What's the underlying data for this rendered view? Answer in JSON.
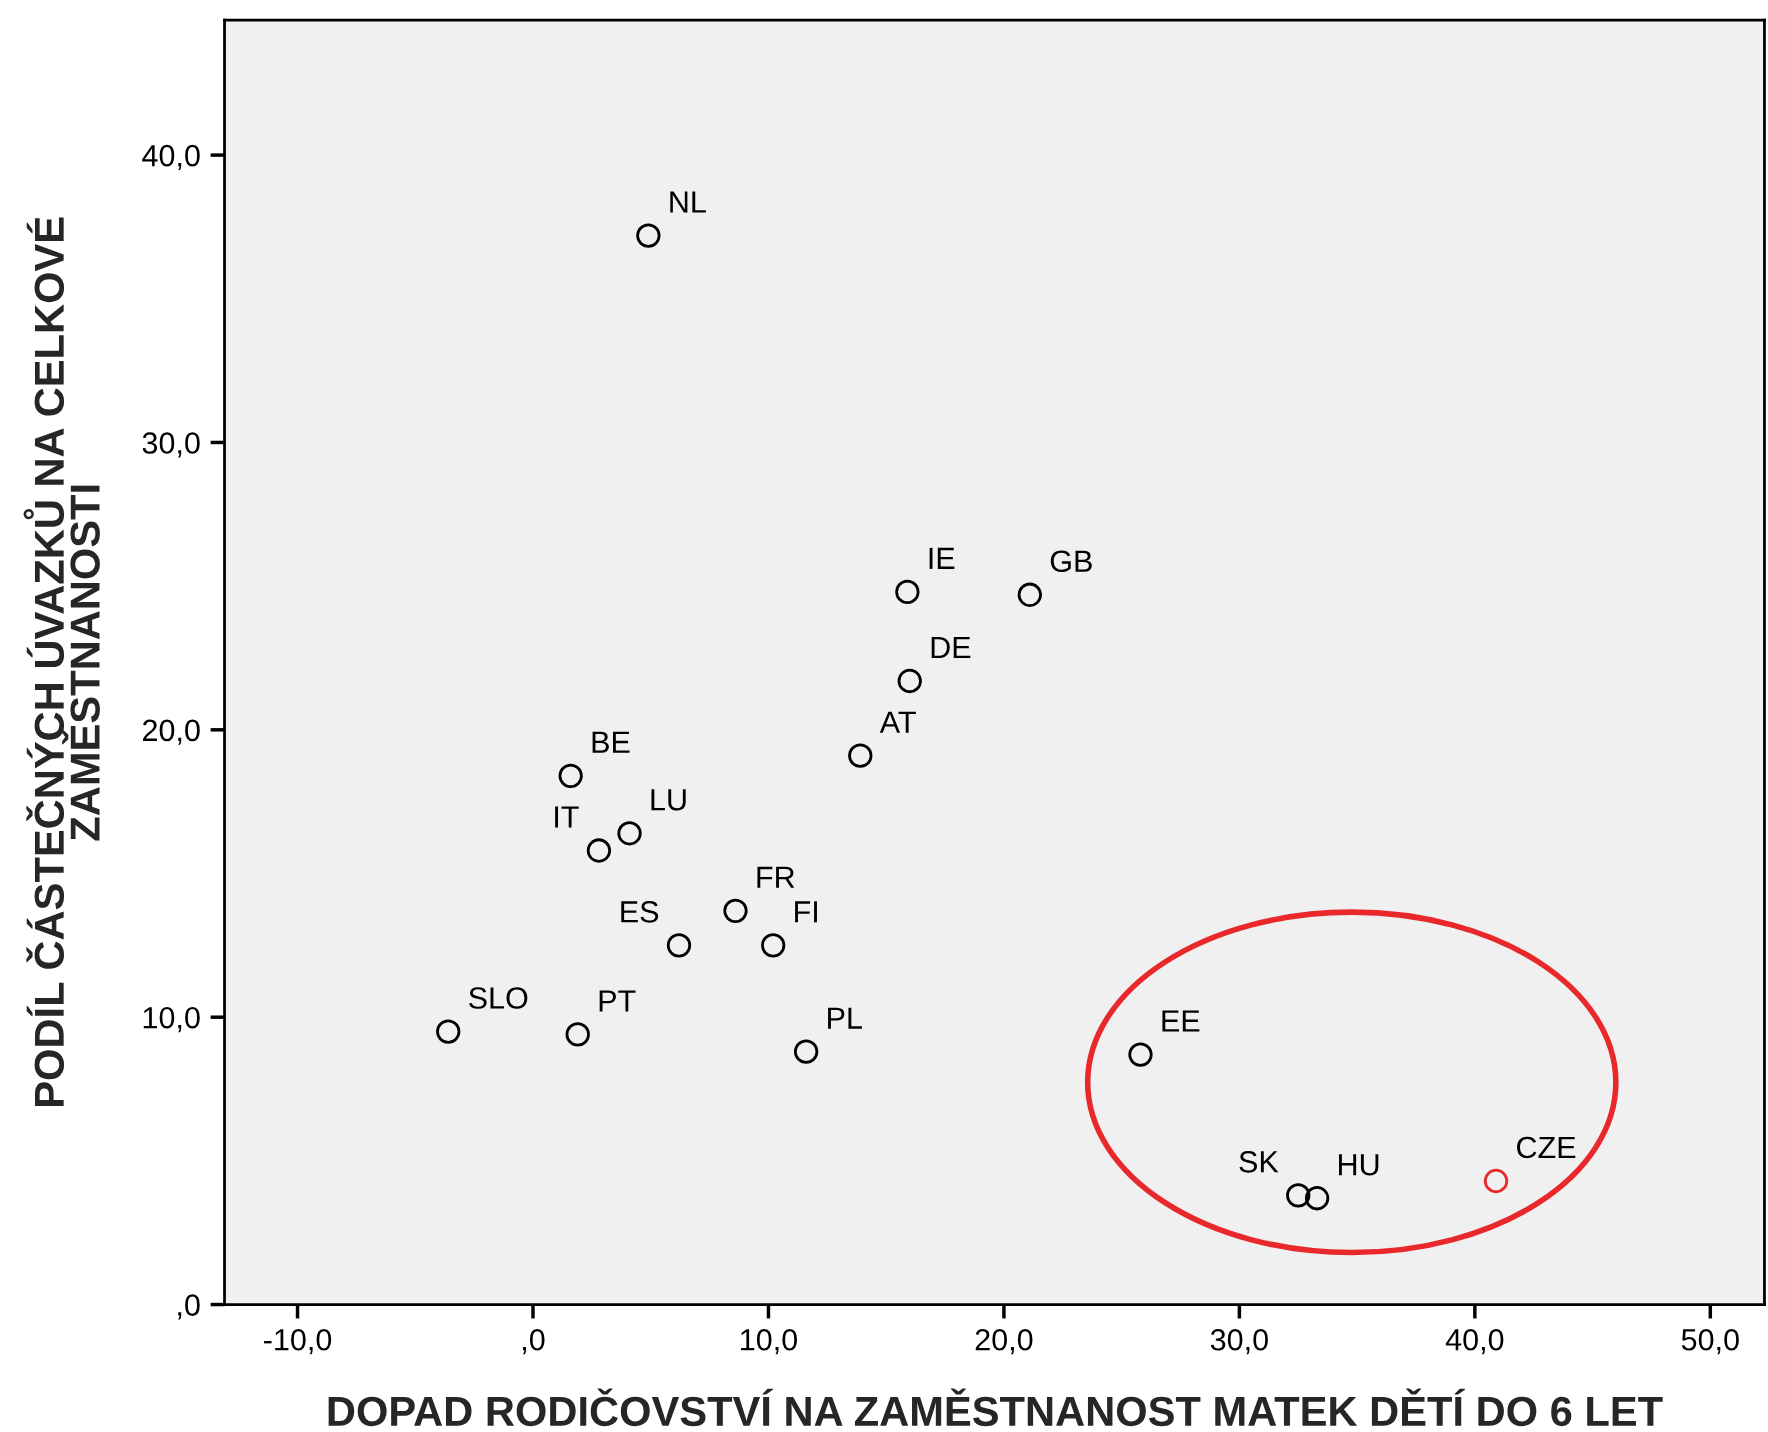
{
  "chart_data": {
    "type": "scatter",
    "xlabel": "DOPAD RODIČOVSTVÍ NA ZAMĚSTNANOST MATEK DĚTÍ DO 6 LET",
    "ylabel": "PODÍL ČÁSTEČNÝCH ÚVAZKŮ NA CELKOVÉ\nZAMĚSTNANOSTI",
    "x": [
      4.9,
      15.9,
      21.1,
      16.0,
      13.9,
      1.6,
      4.1,
      2.8,
      8.6,
      10.2,
      6.2,
      -3.6,
      1.9,
      11.6,
      25.8,
      32.5,
      33.3,
      40.9
    ],
    "values": [
      37.2,
      24.8,
      24.7,
      21.7,
      19.1,
      18.4,
      16.4,
      15.8,
      13.7,
      12.5,
      12.5,
      9.5,
      9.4,
      8.8,
      8.7,
      3.8,
      3.7,
      4.3
    ],
    "colors": [
      "#000000",
      "#000000",
      "#000000",
      "#000000",
      "#000000",
      "#000000",
      "#000000",
      "#000000",
      "#000000",
      "#000000",
      "#000000",
      "#000000",
      "#000000",
      "#000000",
      "#000000",
      "#000000",
      "#000000",
      "#e8282b"
    ],
    "marker": "circle",
    "annotations": [
      {
        "text": "NL",
        "x": 4.9,
        "y": 37.2
      },
      {
        "text": "IE",
        "x": 15.9,
        "y": 24.8
      },
      {
        "text": "GB",
        "x": 21.1,
        "y": 24.7
      },
      {
        "text": "DE",
        "x": 16.0,
        "y": 21.7
      },
      {
        "text": "AT",
        "x": 13.9,
        "y": 19.1
      },
      {
        "text": "BE",
        "x": 1.6,
        "y": 18.4
      },
      {
        "text": "LU",
        "x": 4.1,
        "y": 16.4
      },
      {
        "text": "IT",
        "x": 2.8,
        "y": 15.8
      },
      {
        "text": "FR",
        "x": 8.6,
        "y": 13.7
      },
      {
        "text": "FI",
        "x": 10.2,
        "y": 12.5
      },
      {
        "text": "ES",
        "x": 6.2,
        "y": 12.5
      },
      {
        "text": "SLO",
        "x": -3.6,
        "y": 9.5
      },
      {
        "text": "PT",
        "x": 1.9,
        "y": 9.4
      },
      {
        "text": "PL",
        "x": 11.6,
        "y": 8.8
      },
      {
        "text": "EE",
        "x": 25.8,
        "y": 8.7
      },
      {
        "text": "SK",
        "x": 32.5,
        "y": 3.8
      },
      {
        "text": "HU",
        "x": 33.3,
        "y": 3.7
      },
      {
        "text": "CZE",
        "x": 40.9,
        "y": 4.3
      }
    ],
    "xlim": [
      -13.1,
      52.3
    ],
    "ylim": [
      0,
      44.7
    ],
    "xticks": [
      {
        "value": -10,
        "label": "-10,0"
      },
      {
        "value": 0,
        "label": ",0"
      },
      {
        "value": 10,
        "label": "10,0"
      },
      {
        "value": 20,
        "label": "20,0"
      },
      {
        "value": 30,
        "label": "30,0"
      },
      {
        "value": 40,
        "label": "40,0"
      },
      {
        "value": 50,
        "label": "50,0"
      }
    ],
    "yticks": [
      {
        "value": 0,
        "label": ",0"
      },
      {
        "value": 10,
        "label": "10,0"
      },
      {
        "value": 20,
        "label": "20,0"
      },
      {
        "value": 30,
        "label": "30,0"
      },
      {
        "value": 40,
        "label": "40,0"
      }
    ],
    "grid": false,
    "legend": false
  }
}
